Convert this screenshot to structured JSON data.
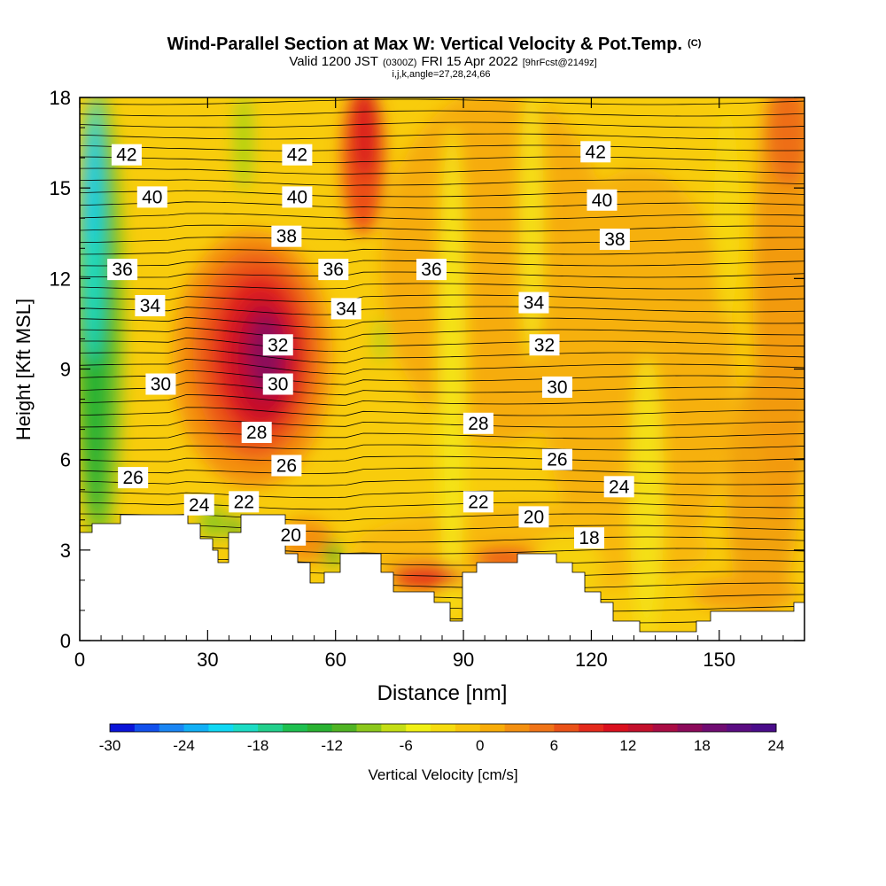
{
  "chart_data": {
    "type": "heatmap",
    "title": "Wind-Parallel Section at Max W: Vertical Velocity & Pot.Temp.",
    "title_mark": "(C)",
    "subtitle_parts": [
      "Valid 1200 JST",
      "(0300Z)",
      "FRI 15 Apr 2022",
      "[9hrFcst@2149z]"
    ],
    "subtitle2": "i,j,k,angle=27,28,24,66",
    "xlabel": "Distance [nm]",
    "ylabel": "Height [Kft MSL]",
    "xlim": [
      0,
      170
    ],
    "ylim": [
      0,
      18
    ],
    "x_ticks": [
      0,
      30,
      60,
      90,
      120,
      150
    ],
    "y_ticks": [
      0,
      3,
      6,
      9,
      12,
      15,
      18
    ],
    "colorbar": {
      "label": "Vertical Velocity [cm/s]",
      "ticks": [
        -30,
        -24,
        -18,
        -12,
        -6,
        0,
        6,
        12,
        18,
        24
      ],
      "min": -30,
      "max": 24,
      "step": 2,
      "colors": [
        "#0a14d8",
        "#1250ec",
        "#1a86f4",
        "#12b0f6",
        "#10d8f4",
        "#1cdcc4",
        "#22d08c",
        "#1ec050",
        "#2ab232",
        "#50b424",
        "#8cc81c",
        "#c4de14",
        "#f0f014",
        "#f6dc0e",
        "#f8c40a",
        "#f8ac08",
        "#f49010",
        "#f07418",
        "#ea5218",
        "#e42a1c",
        "#da101e",
        "#c4102c",
        "#aa0c44",
        "#8c0a5a",
        "#700c72",
        "#5a0c82",
        "#4a0c8a"
      ]
    },
    "contour_labels": [
      {
        "text": "42",
        "x": 11.0,
        "y": 16.1
      },
      {
        "text": "42",
        "x": 51.0,
        "y": 16.1
      },
      {
        "text": "42",
        "x": 121.0,
        "y": 16.2
      },
      {
        "text": "40",
        "x": 17.0,
        "y": 14.7
      },
      {
        "text": "40",
        "x": 51.0,
        "y": 14.7
      },
      {
        "text": "40",
        "x": 122.5,
        "y": 14.6
      },
      {
        "text": "38",
        "x": 48.5,
        "y": 13.4
      },
      {
        "text": "38",
        "x": 125.5,
        "y": 13.3
      },
      {
        "text": "36",
        "x": 10.0,
        "y": 12.3
      },
      {
        "text": "36",
        "x": 59.5,
        "y": 12.3
      },
      {
        "text": "36",
        "x": 82.5,
        "y": 12.3
      },
      {
        "text": "34",
        "x": 16.5,
        "y": 11.1
      },
      {
        "text": "34",
        "x": 62.5,
        "y": 11.0
      },
      {
        "text": "34",
        "x": 106.5,
        "y": 11.2
      },
      {
        "text": "32",
        "x": 46.5,
        "y": 9.8
      },
      {
        "text": "32",
        "x": 109.0,
        "y": 9.8
      },
      {
        "text": "30",
        "x": 19.0,
        "y": 8.5
      },
      {
        "text": "30",
        "x": 46.5,
        "y": 8.5
      },
      {
        "text": "30",
        "x": 112.0,
        "y": 8.4
      },
      {
        "text": "28",
        "x": 41.5,
        "y": 6.9
      },
      {
        "text": "28",
        "x": 93.5,
        "y": 7.2
      },
      {
        "text": "26",
        "x": 12.5,
        "y": 5.4
      },
      {
        "text": "26",
        "x": 48.5,
        "y": 5.8
      },
      {
        "text": "26",
        "x": 112.0,
        "y": 6.0
      },
      {
        "text": "24",
        "x": 28.0,
        "y": 4.5
      },
      {
        "text": "24",
        "x": 126.5,
        "y": 5.1
      },
      {
        "text": "22",
        "x": 38.5,
        "y": 4.6
      },
      {
        "text": "22",
        "x": 93.5,
        "y": 4.6
      },
      {
        "text": "20",
        "x": 49.5,
        "y": 3.5
      },
      {
        "text": "20",
        "x": 106.5,
        "y": 4.1
      },
      {
        "text": "18",
        "x": 119.5,
        "y": 3.4
      }
    ]
  }
}
